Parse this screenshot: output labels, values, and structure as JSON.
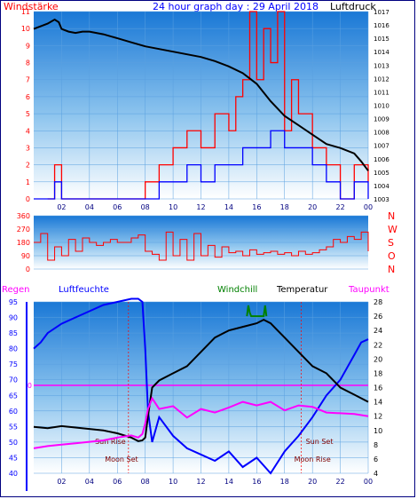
{
  "header": {
    "title": "24 hour graph day : 29 April 2018"
  },
  "chart_data": [
    {
      "type": "line",
      "panel": "wind-pressure",
      "series": [
        {
          "name": "Windstärke",
          "color": "#ff0000",
          "yaxis": "left",
          "x": [
            1.0,
            1.5,
            2.0,
            3.0,
            4.0,
            5.0,
            6.0,
            7.0,
            8.0,
            9.0,
            10.0,
            11.0,
            12.0,
            13.0,
            14.0,
            14.5,
            15.0,
            15.5,
            16.0,
            16.5,
            17.0,
            17.5,
            18.0,
            18.5,
            19.0,
            20.0,
            21.0,
            22.0,
            23.0,
            23.7,
            24.0
          ],
          "values": [
            0,
            2,
            0,
            0,
            0,
            0,
            0,
            0,
            1,
            2,
            3,
            4,
            3,
            5,
            4,
            6,
            7,
            11,
            7,
            10,
            8,
            11,
            4,
            7,
            5,
            3,
            2,
            0,
            2,
            2,
            1
          ]
        },
        {
          "name": "Windstärke (avg)",
          "color": "#0000ff",
          "yaxis": "left",
          "x": [
            0,
            1,
            1.5,
            2,
            3,
            4,
            5,
            6,
            7,
            8,
            9,
            10,
            11,
            12,
            13,
            14,
            15,
            16,
            17,
            18,
            19,
            20,
            21,
            22,
            23,
            24
          ],
          "values": [
            0,
            0,
            1,
            0,
            0,
            0,
            0,
            0,
            0,
            0,
            1,
            1,
            2,
            1,
            2,
            2,
            3,
            3,
            4,
            3,
            3,
            2,
            1,
            0,
            1,
            0
          ]
        },
        {
          "name": "Luftdruck",
          "color": "#000000",
          "yaxis": "right",
          "x": [
            0,
            0.5,
            1,
            1.5,
            1.8,
            2,
            2.5,
            3,
            3.5,
            4,
            5,
            6,
            7,
            8,
            9,
            10,
            11,
            12,
            13,
            14,
            15,
            16,
            17,
            18,
            19,
            20,
            21,
            22,
            23,
            23.5,
            24
          ],
          "values": [
            1015.7,
            1015.9,
            1016.1,
            1016.4,
            1016.2,
            1015.7,
            1015.5,
            1015.4,
            1015.5,
            1015.5,
            1015.3,
            1015.0,
            1014.7,
            1014.4,
            1014.2,
            1014.0,
            1013.8,
            1013.6,
            1013.3,
            1012.9,
            1012.4,
            1011.6,
            1010.3,
            1009.2,
            1008.5,
            1007.8,
            1007.1,
            1006.8,
            1006.4,
            1005.8,
            1005.1
          ]
        }
      ],
      "ylim_left": [
        0,
        11
      ],
      "ylim_right": [
        1003,
        1017
      ],
      "ylabel_left": "Windstärke",
      "ylabel_right": "Luftdruck",
      "yticks_left": [
        "0",
        "1",
        "2",
        "3",
        "4",
        "5",
        "6",
        "7",
        "8",
        "9",
        "10",
        "11"
      ],
      "yticks_right": [
        "1003",
        "1004",
        "1005",
        "1006",
        "1007",
        "1008",
        "1009",
        "1010",
        "1011",
        "1012",
        "1013",
        "1014",
        "1015",
        "1016",
        "1017"
      ],
      "xticks": [
        "02",
        "04",
        "06",
        "08",
        "10",
        "12",
        "14",
        "16",
        "18",
        "20",
        "22",
        "00"
      ]
    },
    {
      "type": "line",
      "panel": "wind-direction",
      "series": [
        {
          "name": "Windrichtung",
          "color": "#ff0000",
          "x": [
            0,
            0.5,
            1,
            1.5,
            2,
            2.5,
            3,
            3.5,
            4,
            4.5,
            5,
            5.5,
            6,
            6.5,
            7,
            7.5,
            8,
            8.5,
            9,
            9.5,
            10,
            10.5,
            11,
            11.5,
            12,
            12.5,
            13,
            13.5,
            14,
            14.5,
            15,
            15.5,
            16,
            16.5,
            17,
            17.5,
            18,
            18.5,
            19,
            19.5,
            20,
            20.5,
            21,
            21.5,
            22,
            22.5,
            23,
            23.5,
            24
          ],
          "values": [
            180,
            240,
            60,
            150,
            90,
            200,
            120,
            210,
            180,
            160,
            180,
            200,
            180,
            180,
            210,
            230,
            120,
            100,
            60,
            250,
            90,
            200,
            60,
            240,
            90,
            160,
            80,
            150,
            110,
            120,
            90,
            130,
            100,
            110,
            120,
            100,
            110,
            90,
            120,
            100,
            110,
            130,
            150,
            200,
            180,
            220,
            200,
            250,
            120
          ]
        }
      ],
      "ylim": [
        0,
        360
      ],
      "yticks": [
        "0",
        "90",
        "180",
        "270",
        "360"
      ],
      "ylabel_right": [
        "N",
        "W",
        "S",
        "O",
        "N"
      ]
    },
    {
      "type": "line",
      "panel": "humidity-temperature",
      "series": [
        {
          "name": "Luftfeuchte",
          "color": "#0000ff",
          "yaxis": "left",
          "x": [
            0,
            0.5,
            1,
            2,
            3,
            4,
            5,
            6,
            7,
            7.5,
            7.8,
            8.0,
            8.2,
            8.5,
            9,
            10,
            11,
            12,
            13,
            14,
            15,
            16,
            17,
            18,
            19,
            20,
            21,
            22,
            23,
            23.5,
            24
          ],
          "values": [
            80,
            82,
            85,
            88,
            90,
            92,
            94,
            95,
            96,
            96,
            95,
            80,
            60,
            50,
            58,
            52,
            48,
            46,
            44,
            47,
            42,
            45,
            40,
            47,
            52,
            58,
            65,
            70,
            78,
            82,
            83
          ]
        },
        {
          "name": "Windchill",
          "color": "#008000",
          "yaxis": "right",
          "x": [
            15.3,
            15.4,
            15.5,
            15.6,
            16.5,
            16.6,
            16.7
          ],
          "values": [
            26,
            27.5,
            26.5,
            26,
            26,
            27.5,
            26
          ]
        },
        {
          "name": "Temperatur",
          "color": "#000000",
          "yaxis": "right",
          "x": [
            0,
            1,
            2,
            3,
            4,
            5,
            6,
            7,
            7.5,
            7.8,
            8.0,
            8.2,
            8.5,
            9,
            10,
            11,
            12,
            13,
            14,
            15,
            16,
            16.5,
            17,
            17.5,
            18,
            19,
            20,
            21,
            22,
            23,
            24
          ],
          "values": [
            10.5,
            10.3,
            10.6,
            10.4,
            10.2,
            10.0,
            9.6,
            9.0,
            8.5,
            8.6,
            9,
            12,
            16,
            17,
            18,
            19,
            21,
            23,
            24,
            24.5,
            25,
            25.5,
            25,
            24,
            23,
            21,
            19,
            18,
            16,
            15,
            14
          ]
        },
        {
          "name": "Taupunkt",
          "color": "#ff00ff",
          "yaxis": "right",
          "x": [
            0,
            1,
            2,
            3,
            4,
            5,
            6,
            7,
            7.5,
            7.8,
            8.0,
            8.2,
            8.5,
            9,
            10,
            11,
            12,
            13,
            14,
            15,
            16,
            17,
            18,
            19,
            20,
            21,
            22,
            23,
            24
          ],
          "values": [
            7.5,
            7.8,
            8,
            8.2,
            8.4,
            8.6,
            9,
            9.3,
            9.0,
            9.5,
            11,
            13,
            14.5,
            13,
            13.4,
            11.8,
            13,
            12.5,
            13.2,
            14,
            13.5,
            14,
            12.8,
            13.5,
            13.3,
            12.5,
            12.4,
            12.3,
            12
          ]
        }
      ],
      "ylim_left": [
        40,
        95
      ],
      "ylim_right": [
        4,
        28
      ],
      "yticks_left": [
        "40",
        "45",
        "50",
        "55",
        "60",
        "65",
        "70",
        "75",
        "80",
        "85",
        "90",
        "95"
      ],
      "yticks_right": [
        "4",
        "6",
        "8",
        "10",
        "12",
        "14",
        "16",
        "18",
        "20",
        "22",
        "24",
        "26",
        "28"
      ],
      "zero_label": "0",
      "xticks": [
        "02",
        "04",
        "06",
        "08",
        "10",
        "12",
        "14",
        "16",
        "18",
        "20",
        "22",
        "00"
      ],
      "annotations": {
        "sun_rise": "Sun Rise",
        "sun_set": "Sun Set",
        "moon_set": "Moon Set",
        "moon_rise": "Moon Rise"
      },
      "labels": {
        "regen": "Regen",
        "luftfeuchte": "Luftfeuchte",
        "windchill": "Windchill",
        "temperatur": "Temperatur",
        "taupunkt": "Taupunkt"
      }
    }
  ]
}
